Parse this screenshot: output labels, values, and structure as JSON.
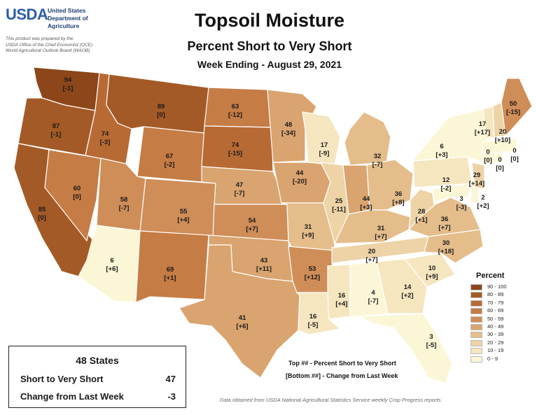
{
  "agency": {
    "logo_text": "USDA",
    "department_lines": [
      "United States",
      "Department of",
      "Agriculture"
    ],
    "disclaimer_lines": [
      "This product was prepared by the",
      "USDA Office of the Chief Economist (OCE)",
      "World Agricultural Outlook Board (WAOB)"
    ]
  },
  "title": "Topsoil Moisture",
  "subtitle": "Percent Short to Very Short",
  "week": "Week Ending - August 29, 2021",
  "legend": {
    "title": "Percent",
    "bins": [
      {
        "label": "90 - 100",
        "color": "#8c4619"
      },
      {
        "label": "80 - 89",
        "color": "#a45a26"
      },
      {
        "label": "70 - 79",
        "color": "#b86a35"
      },
      {
        "label": "60 - 69",
        "color": "#c57c45"
      },
      {
        "label": "50 - 59",
        "color": "#cf8d58"
      },
      {
        "label": "40 - 49",
        "color": "#d9a46f"
      },
      {
        "label": "30 - 39",
        "color": "#e4bd8b"
      },
      {
        "label": "20 - 29",
        "color": "#edd3a6"
      },
      {
        "label": "10 - 19",
        "color": "#f5e6c0"
      },
      {
        "label": "0 - 9",
        "color": "#fbf6d6"
      }
    ]
  },
  "states": [
    {
      "id": "WA",
      "value": "94",
      "change": "[-1]"
    },
    {
      "id": "OR",
      "value": "87",
      "change": "[-1]"
    },
    {
      "id": "CA",
      "value": "85",
      "change": "[0]"
    },
    {
      "id": "ID",
      "value": "74",
      "change": "[-3]"
    },
    {
      "id": "NV",
      "value": "60",
      "change": "[0]"
    },
    {
      "id": "MT",
      "value": "89",
      "change": "[0]"
    },
    {
      "id": "WY",
      "value": "67",
      "change": "[-2]"
    },
    {
      "id": "UT",
      "value": "58",
      "change": "[-7]"
    },
    {
      "id": "AZ",
      "value": "6",
      "change": "[+6]"
    },
    {
      "id": "CO",
      "value": "55",
      "change": "[+4]"
    },
    {
      "id": "NM",
      "value": "69",
      "change": "[+1]"
    },
    {
      "id": "ND",
      "value": "63",
      "change": "[-12]"
    },
    {
      "id": "SD",
      "value": "74",
      "change": "[-15]"
    },
    {
      "id": "NE",
      "value": "47",
      "change": "[-7]"
    },
    {
      "id": "KS",
      "value": "54",
      "change": "[+7]"
    },
    {
      "id": "OK",
      "value": "43",
      "change": "[+11]"
    },
    {
      "id": "TX",
      "value": "41",
      "change": "[+6]"
    },
    {
      "id": "MN",
      "value": "48",
      "change": "[-34]"
    },
    {
      "id": "IA",
      "value": "44",
      "change": "[-20]"
    },
    {
      "id": "MO",
      "value": "31",
      "change": "[+9]"
    },
    {
      "id": "AR",
      "value": "53",
      "change": "[+12]"
    },
    {
      "id": "LA",
      "value": "16",
      "change": "[-5]"
    },
    {
      "id": "WI",
      "value": "17",
      "change": "[-9]"
    },
    {
      "id": "IL",
      "value": "25",
      "change": "[-11]"
    },
    {
      "id": "MI",
      "value": "32",
      "change": "[-7]"
    },
    {
      "id": "IN",
      "value": "44",
      "change": "[+3]"
    },
    {
      "id": "OH",
      "value": "36",
      "change": "[+8]"
    },
    {
      "id": "KY",
      "value": "31",
      "change": "[+7]"
    },
    {
      "id": "TN",
      "value": "20",
      "change": "[+7]"
    },
    {
      "id": "MS",
      "value": "16",
      "change": "[+4]"
    },
    {
      "id": "AL",
      "value": "4",
      "change": "[-7]"
    },
    {
      "id": "GA",
      "value": "14",
      "change": "[+2]"
    },
    {
      "id": "FL",
      "value": "3",
      "change": "[-5]"
    },
    {
      "id": "SC",
      "value": "10",
      "change": "[+9]"
    },
    {
      "id": "NC",
      "value": "30",
      "change": "[+18]"
    },
    {
      "id": "VA",
      "value": "36",
      "change": "[+7]"
    },
    {
      "id": "WV",
      "value": "28",
      "change": "[+1]"
    },
    {
      "id": "PA",
      "value": "12",
      "change": "[-2]"
    },
    {
      "id": "NY",
      "value": "6",
      "change": "[+3]"
    },
    {
      "id": "MD",
      "value": "3",
      "change": "[-3]"
    },
    {
      "id": "DE",
      "value": "2",
      "change": "[+2]"
    },
    {
      "id": "NJ",
      "value": "29",
      "change": "[+14]"
    },
    {
      "id": "CT",
      "value": "0",
      "change": "[0]"
    },
    {
      "id": "RI",
      "value": "0",
      "change": "[0]"
    },
    {
      "id": "MA",
      "value": "0",
      "change": "[0]"
    },
    {
      "id": "VT",
      "value": "17",
      "change": "[+17]"
    },
    {
      "id": "NH",
      "value": "20",
      "change": "[+10]"
    },
    {
      "id": "ME",
      "value": "50",
      "change": "[-15]"
    }
  ],
  "notes": {
    "top": "Top ## - Percent Short to Very Short",
    "bottom": "[Bottom ##] - Change from Last Week"
  },
  "source": "Data obtained from USDA National Agricultural Statistics Service weekly Crop Progress reports.",
  "summary": {
    "heading": "48 States",
    "rows": [
      {
        "label": "Short to Very Short",
        "value": "47"
      },
      {
        "label": "Change from Last Week",
        "value": "-3"
      }
    ]
  }
}
